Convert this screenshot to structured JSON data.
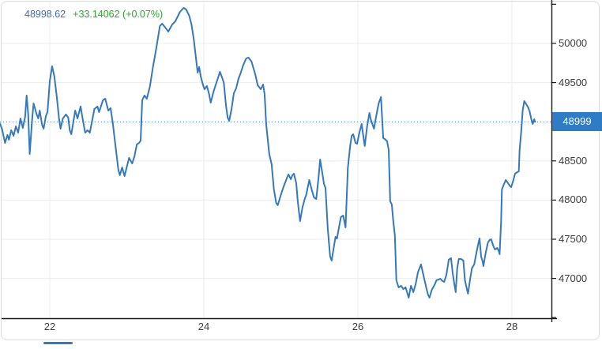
{
  "header": {
    "last_price": "48998.62",
    "change": "+33.14062 (+0.07%)"
  },
  "colors": {
    "line": "#3578bc",
    "current_price_bg": "#2e7cc6",
    "price_value_text": "#3d6eb4",
    "change_text": "#2fa32f",
    "grid": "#ececec",
    "axis_line": "#1a1a1a",
    "axis_label": "#3c3c3c",
    "dotted": "#4a86c4",
    "tab_indicator": "#2e7cc6",
    "card_border": "#dcdcdc"
  },
  "chart_data": {
    "type": "line",
    "title": "",
    "legend": [],
    "grid": true,
    "x_tick_labels": [
      "22",
      "24",
      "26",
      "28"
    ],
    "x_tick_days": [
      22,
      24,
      26,
      28
    ],
    "y_tick_labels": [
      "50000",
      "49500",
      "48500",
      "48000",
      "47500",
      "47000"
    ],
    "y_tick_prices": [
      50000,
      49500,
      48500,
      48000,
      47500,
      47000
    ],
    "grid_prices": [
      50000,
      49500,
      49000,
      48500,
      48000,
      47500,
      47000
    ],
    "axis_tick_prices": [
      50500,
      50000,
      49500,
      49000,
      48500,
      48000,
      47500,
      47000,
      46500
    ],
    "x_domain": [
      21.354,
      28.503
    ],
    "y_domain": [
      46492,
      50554
    ],
    "last_price": 48998.62,
    "last_price_label": "48999",
    "points": [
      [
        21.35,
        48982
      ],
      [
        21.38,
        48911
      ],
      [
        21.42,
        48730
      ],
      [
        21.45,
        48831
      ],
      [
        21.47,
        48770
      ],
      [
        21.5,
        48891
      ],
      [
        21.53,
        48821
      ],
      [
        21.56,
        48942
      ],
      [
        21.59,
        48861
      ],
      [
        21.62,
        49042
      ],
      [
        21.65,
        48921
      ],
      [
        21.68,
        49063
      ],
      [
        21.7,
        49335
      ],
      [
        21.72,
        49093
      ],
      [
        21.74,
        48589
      ],
      [
        21.77,
        49022
      ],
      [
        21.79,
        49234
      ],
      [
        21.83,
        49093
      ],
      [
        21.85,
        49042
      ],
      [
        21.87,
        49143
      ],
      [
        21.9,
        48962
      ],
      [
        21.92,
        48911
      ],
      [
        21.95,
        49073
      ],
      [
        21.97,
        49123
      ],
      [
        22.0,
        49516
      ],
      [
        22.03,
        49708
      ],
      [
        22.06,
        49577
      ],
      [
        22.09,
        49325
      ],
      [
        22.12,
        49042
      ],
      [
        22.14,
        48911
      ],
      [
        22.17,
        49042
      ],
      [
        22.21,
        49093
      ],
      [
        22.24,
        49052
      ],
      [
        22.26,
        48891
      ],
      [
        22.28,
        48841
      ],
      [
        22.33,
        49143
      ],
      [
        22.36,
        49042
      ],
      [
        22.4,
        49194
      ],
      [
        22.43,
        49022
      ],
      [
        22.46,
        48861
      ],
      [
        22.49,
        48891
      ],
      [
        22.52,
        48861
      ],
      [
        22.58,
        49163
      ],
      [
        22.62,
        49194
      ],
      [
        22.64,
        49123
      ],
      [
        22.69,
        49274
      ],
      [
        22.72,
        49294
      ],
      [
        22.76,
        49143
      ],
      [
        22.79,
        49173
      ],
      [
        22.82,
        48972
      ],
      [
        22.86,
        48639
      ],
      [
        22.89,
        48387
      ],
      [
        22.91,
        48317
      ],
      [
        22.94,
        48417
      ],
      [
        22.97,
        48306
      ],
      [
        23.03,
        48538
      ],
      [
        23.07,
        48468
      ],
      [
        23.1,
        48559
      ],
      [
        23.13,
        48710
      ],
      [
        23.16,
        48730
      ],
      [
        23.18,
        48760
      ],
      [
        23.2,
        49274
      ],
      [
        23.23,
        49335
      ],
      [
        23.26,
        49294
      ],
      [
        23.3,
        49446
      ],
      [
        23.34,
        49698
      ],
      [
        23.38,
        49919
      ],
      [
        23.43,
        50222
      ],
      [
        23.46,
        50252
      ],
      [
        23.5,
        50202
      ],
      [
        23.54,
        50151
      ],
      [
        23.59,
        50242
      ],
      [
        23.63,
        50282
      ],
      [
        23.69,
        50403
      ],
      [
        23.74,
        50454
      ],
      [
        23.77,
        50433
      ],
      [
        23.81,
        50353
      ],
      [
        23.84,
        50242
      ],
      [
        23.87,
        50050
      ],
      [
        23.9,
        49798
      ],
      [
        23.92,
        49627
      ],
      [
        23.94,
        49698
      ],
      [
        23.96,
        49577
      ],
      [
        23.99,
        49466
      ],
      [
        24.01,
        49415
      ],
      [
        24.04,
        49456
      ],
      [
        24.07,
        49345
      ],
      [
        24.09,
        49244
      ],
      [
        24.13,
        49395
      ],
      [
        24.17,
        49516
      ],
      [
        24.21,
        49637
      ],
      [
        24.24,
        49556
      ],
      [
        24.26,
        49496
      ],
      [
        24.29,
        49194
      ],
      [
        24.31,
        49052
      ],
      [
        24.33,
        49012
      ],
      [
        24.36,
        49163
      ],
      [
        24.39,
        49365
      ],
      [
        24.42,
        49426
      ],
      [
        24.45,
        49546
      ],
      [
        24.48,
        49627
      ],
      [
        24.51,
        49718
      ],
      [
        24.55,
        49808
      ],
      [
        24.58,
        49819
      ],
      [
        24.62,
        49768
      ],
      [
        24.65,
        49667
      ],
      [
        24.67,
        49597
      ],
      [
        24.7,
        49466
      ],
      [
        24.74,
        49415
      ],
      [
        24.77,
        49476
      ],
      [
        24.79,
        49345
      ],
      [
        24.81,
        48972
      ],
      [
        24.85,
        48589
      ],
      [
        24.88,
        48458
      ],
      [
        24.91,
        48135
      ],
      [
        24.94,
        47964
      ],
      [
        24.96,
        47934
      ],
      [
        25.0,
        48065
      ],
      [
        25.03,
        48155
      ],
      [
        25.05,
        48206
      ],
      [
        25.08,
        48286
      ],
      [
        25.1,
        48327
      ],
      [
        25.13,
        48266
      ],
      [
        25.15,
        48317
      ],
      [
        25.17,
        48337
      ],
      [
        25.2,
        48216
      ],
      [
        25.22,
        47984
      ],
      [
        25.25,
        47732
      ],
      [
        25.28,
        47903
      ],
      [
        25.31,
        48014
      ],
      [
        25.33,
        48065
      ],
      [
        25.35,
        48165
      ],
      [
        25.37,
        48256
      ],
      [
        25.4,
        48135
      ],
      [
        25.43,
        48034
      ],
      [
        25.46,
        48014
      ],
      [
        25.49,
        48286
      ],
      [
        25.51,
        48518
      ],
      [
        25.54,
        48337
      ],
      [
        25.56,
        48206
      ],
      [
        25.58,
        48155
      ],
      [
        25.61,
        47631
      ],
      [
        25.64,
        47278
      ],
      [
        25.66,
        47228
      ],
      [
        25.69,
        47409
      ],
      [
        25.71,
        47530
      ],
      [
        25.73,
        47510
      ],
      [
        25.76,
        47682
      ],
      [
        25.78,
        47782
      ],
      [
        25.81,
        47802
      ],
      [
        25.84,
        47651
      ],
      [
        25.87,
        48407
      ],
      [
        25.9,
        48690
      ],
      [
        25.92,
        48821
      ],
      [
        25.94,
        48841
      ],
      [
        25.97,
        48730
      ],
      [
        25.99,
        48720
      ],
      [
        26.02,
        48861
      ],
      [
        26.05,
        48972
      ],
      [
        26.07,
        48821
      ],
      [
        26.09,
        48690
      ],
      [
        26.12,
        48942
      ],
      [
        26.15,
        49113
      ],
      [
        26.17,
        49022
      ],
      [
        26.21,
        48911
      ],
      [
        26.24,
        49083
      ],
      [
        26.27,
        49234
      ],
      [
        26.3,
        49315
      ],
      [
        26.33,
        48790
      ],
      [
        26.35,
        48780
      ],
      [
        26.38,
        48750
      ],
      [
        26.4,
        48639
      ],
      [
        26.42,
        47984
      ],
      [
        26.44,
        47944
      ],
      [
        26.46,
        47732
      ],
      [
        26.48,
        47551
      ],
      [
        26.5,
        46976
      ],
      [
        26.53,
        46885
      ],
      [
        26.56,
        46906
      ],
      [
        26.59,
        46865
      ],
      [
        26.62,
        46885
      ],
      [
        26.66,
        46754
      ],
      [
        26.69,
        46906
      ],
      [
        26.72,
        46825
      ],
      [
        26.75,
        46926
      ],
      [
        26.78,
        47077
      ],
      [
        26.82,
        47178
      ],
      [
        26.85,
        47047
      ],
      [
        26.89,
        46875
      ],
      [
        26.91,
        46794
      ],
      [
        26.93,
        46754
      ],
      [
        26.96,
        46855
      ],
      [
        27.0,
        46926
      ],
      [
        27.02,
        46976
      ],
      [
        27.05,
        46986
      ],
      [
        27.07,
        46996
      ],
      [
        27.1,
        46966
      ],
      [
        27.12,
        46956
      ],
      [
        27.15,
        47047
      ],
      [
        27.18,
        47238
      ],
      [
        27.21,
        47258
      ],
      [
        27.23,
        47077
      ],
      [
        27.25,
        46946
      ],
      [
        27.27,
        46825
      ],
      [
        27.29,
        47127
      ],
      [
        27.31,
        47248
      ],
      [
        27.34,
        47248
      ],
      [
        27.37,
        47228
      ],
      [
        27.39,
        46976
      ],
      [
        27.42,
        46845
      ],
      [
        27.43,
        46805
      ],
      [
        27.46,
        47006
      ],
      [
        27.48,
        47127
      ],
      [
        27.51,
        47178
      ],
      [
        27.54,
        47329
      ],
      [
        27.56,
        47430
      ],
      [
        27.58,
        47510
      ],
      [
        27.6,
        47278
      ],
      [
        27.62,
        47218
      ],
      [
        27.63,
        47157
      ],
      [
        27.66,
        47329
      ],
      [
        27.69,
        47460
      ],
      [
        27.71,
        47490
      ],
      [
        27.73,
        47500
      ],
      [
        27.76,
        47409
      ],
      [
        27.78,
        47369
      ],
      [
        27.81,
        47389
      ],
      [
        27.83,
        47349
      ],
      [
        27.84,
        47309
      ],
      [
        27.86,
        47732
      ],
      [
        27.87,
        48135
      ],
      [
        27.89,
        48185
      ],
      [
        27.92,
        48256
      ],
      [
        27.95,
        48216
      ],
      [
        27.97,
        48185
      ],
      [
        27.99,
        48165
      ],
      [
        28.02,
        48256
      ],
      [
        28.04,
        48337
      ],
      [
        28.07,
        48357
      ],
      [
        28.09,
        48367
      ],
      [
        28.1,
        48639
      ],
      [
        28.12,
        48871
      ],
      [
        28.14,
        49143
      ],
      [
        28.16,
        49264
      ],
      [
        28.18,
        49234
      ],
      [
        28.21,
        49184
      ],
      [
        28.23,
        49133
      ],
      [
        28.25,
        49042
      ],
      [
        28.27,
        48972
      ],
      [
        28.29,
        49032
      ],
      [
        28.3,
        48999
      ]
    ]
  }
}
